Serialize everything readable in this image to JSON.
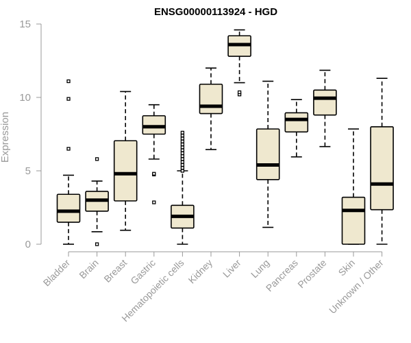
{
  "chart_data": {
    "type": "box",
    "title": "ENSG00000113924 - HGD",
    "xlabel": "",
    "ylabel": "Expression",
    "ylim": [
      0,
      15
    ],
    "yticks": [
      0,
      5,
      10,
      15
    ],
    "colors": {
      "box_fill": "#efe8cf",
      "stroke": "#000000",
      "axis": "#999999"
    },
    "categories": [
      "Bladder",
      "Brain",
      "Breast",
      "Gastric",
      "Hematopoietic cells",
      "Kidney",
      "Liver",
      "Lung",
      "Pancreas",
      "Prostate",
      "Skin",
      "Unknown / Other"
    ],
    "boxes": [
      {
        "min": 0.0,
        "q1": 1.5,
        "median": 2.25,
        "q3": 3.4,
        "max": 4.7,
        "outliers": [
          6.5,
          9.9,
          11.1
        ]
      },
      {
        "min": 0.85,
        "q1": 2.25,
        "median": 3.0,
        "q3": 3.6,
        "max": 4.3,
        "outliers": [
          0.0,
          5.8
        ]
      },
      {
        "min": 0.95,
        "q1": 2.95,
        "median": 4.8,
        "q3": 7.05,
        "max": 10.4,
        "outliers": []
      },
      {
        "min": 5.8,
        "q1": 7.5,
        "median": 8.0,
        "q3": 8.75,
        "max": 9.5,
        "outliers": [
          2.85,
          4.75,
          4.8
        ]
      },
      {
        "min": 0.0,
        "q1": 1.1,
        "median": 1.9,
        "q3": 2.65,
        "max": 5.0,
        "outliers": [
          5.0,
          5.2,
          5.4,
          5.6,
          5.8,
          6.0,
          6.2,
          6.4,
          6.6,
          6.8,
          7.0,
          7.2,
          7.4,
          7.6
        ]
      },
      {
        "min": 6.45,
        "q1": 8.9,
        "median": 9.4,
        "q3": 10.9,
        "max": 12.0,
        "outliers": []
      },
      {
        "min": 11.0,
        "q1": 12.8,
        "median": 13.6,
        "q3": 14.2,
        "max": 14.6,
        "outliers": [
          10.2,
          10.35
        ]
      },
      {
        "min": 1.15,
        "q1": 4.4,
        "median": 5.4,
        "q3": 7.85,
        "max": 11.1,
        "outliers": []
      },
      {
        "min": 5.95,
        "q1": 7.65,
        "median": 8.5,
        "q3": 8.95,
        "max": 9.85,
        "outliers": []
      },
      {
        "min": 6.65,
        "q1": 8.8,
        "median": 9.95,
        "q3": 10.5,
        "max": 11.85,
        "outliers": []
      },
      {
        "min": 0.0,
        "q1": 0.0,
        "median": 2.3,
        "q3": 3.2,
        "max": 7.85,
        "outliers": []
      },
      {
        "min": 0.0,
        "q1": 2.35,
        "median": 4.1,
        "q3": 8.0,
        "max": 11.3,
        "outliers": []
      }
    ]
  }
}
